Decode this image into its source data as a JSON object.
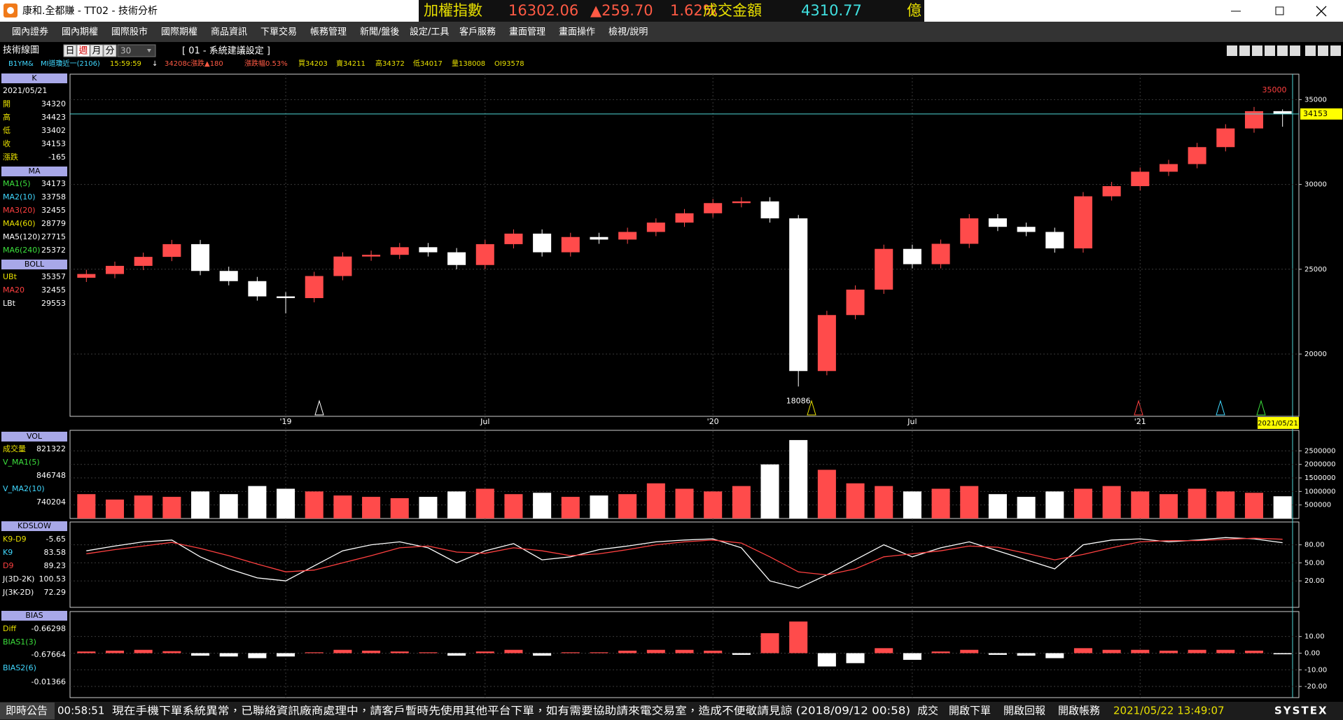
{
  "window": {
    "title": "康和.全都賺 - TT02 - 技術分析"
  },
  "ticker": {
    "name": "加權指數",
    "price": "16302.06",
    "change": "▲259.70",
    "pct": "1.62%",
    "turnover_label": "成交金額",
    "turnover": "4310.77",
    "unit": "億"
  },
  "menu": [
    "國內證券",
    "國內期權",
    "國際股市",
    "國際期權",
    "商品資訊",
    "下單交易",
    "帳務管理",
    "新聞/盤後",
    "設定/工具",
    "客戶服務",
    "畫面管理",
    "畫面操作",
    "檢視/說明"
  ],
  "toolbar": {
    "label": "技術線圖",
    "periods": [
      "日",
      "週",
      "月",
      "分"
    ],
    "count": "30",
    "setting": "[ 01 - 系統建議設定 ]"
  },
  "quote_line": [
    "B1YM&",
    "MI道瓊近一(2106)",
    "15:59:59",
    "↓",
    "34208c",
    "漲跌▲180",
    "漲跌幅0.53%",
    "買34203",
    "賣34211",
    "高34372",
    "低34017",
    "量138008",
    "OI93578"
  ],
  "chart_data": [
    {
      "type": "candlestick",
      "title": "K",
      "date": "2021/05/21",
      "categories": [
        null,
        null,
        null,
        null,
        null,
        null,
        null,
        "'19",
        null,
        null,
        null,
        null,
        null,
        null,
        "Jul",
        null,
        null,
        null,
        null,
        null,
        null,
        null,
        "'20",
        null,
        null,
        null,
        null,
        null,
        null,
        "Jul",
        null,
        null,
        null,
        null,
        null,
        null,
        null,
        "'21",
        null,
        null,
        null,
        null,
        null
      ],
      "open": [
        24500,
        24720,
        25200,
        25730,
        26480,
        24900,
        24300,
        23400,
        23300,
        24600,
        25750,
        25850,
        26300,
        26000,
        25250,
        26480,
        27100,
        26000,
        26900,
        26750,
        27200,
        27750,
        28300,
        28900,
        29000,
        28000,
        19000,
        22300,
        23800,
        26200,
        25300,
        26500,
        28000,
        27500,
        27200,
        26230,
        29300,
        29900,
        30750,
        31200,
        32200,
        33300,
        34320
      ],
      "high": [
        24970,
        25450,
        25980,
        26730,
        26730,
        25150,
        24550,
        23650,
        24850,
        26000,
        26100,
        26550,
        26550,
        26250,
        26730,
        27350,
        27350,
        27150,
        27150,
        27450,
        28000,
        28550,
        29150,
        29250,
        29250,
        28200,
        22550,
        24050,
        26450,
        26450,
        26750,
        28250,
        28250,
        27750,
        27450,
        29550,
        30150,
        31000,
        31450,
        32450,
        33550,
        34568,
        34423
      ],
      "low": [
        24250,
        24470,
        24950,
        25480,
        24650,
        24050,
        23150,
        22400,
        23050,
        24350,
        25500,
        25600,
        25750,
        25000,
        25000,
        26230,
        25750,
        25750,
        26500,
        26500,
        26950,
        27500,
        28050,
        28650,
        27750,
        18086,
        18750,
        22050,
        23550,
        25050,
        25050,
        26250,
        27250,
        26950,
        25980,
        25980,
        29050,
        29650,
        30500,
        30950,
        31950,
        33050,
        33402
      ],
      "close": [
        24720,
        25200,
        25730,
        26480,
        24900,
        24300,
        23400,
        23300,
        24600,
        25750,
        25850,
        26300,
        26000,
        25250,
        26480,
        27100,
        26000,
        26900,
        26750,
        27200,
        27750,
        28300,
        28900,
        29000,
        28000,
        19000,
        22300,
        23800,
        26200,
        25300,
        26500,
        28000,
        27500,
        27200,
        26230,
        29300,
        29900,
        30750,
        31200,
        32200,
        33300,
        34318,
        34153
      ],
      "field_labels": [
        "開",
        "高",
        "低",
        "收"
      ],
      "change_label": "漲跌",
      "change": -165,
      "up_color": "#ff4b4b",
      "down_color": "#ffffff",
      "price_line_color": "#4fd6d6",
      "ylim": [
        16330,
        36500
      ],
      "yticks": [
        20000,
        25000,
        30000,
        35000
      ],
      "grid": true,
      "annotations": [
        "35000"
      ],
      "ma_title": "MA",
      "ma": [
        {
          "name": "MA1(5)",
          "value": 34173,
          "color": "#3ce03c"
        },
        {
          "name": "MA2(10)",
          "value": 33758,
          "color": "#40d8ff"
        },
        {
          "name": "MA3(20)",
          "value": 32455,
          "color": "#ff4040"
        },
        {
          "name": "MA4(60)",
          "value": 28779,
          "color": "#e8e000"
        },
        {
          "name": "MA5(120)",
          "value": 27715,
          "color": "#ffffff"
        },
        {
          "name": "MA6(240)",
          "value": 25372,
          "color": "#3ce03c"
        }
      ],
      "boll_title": "BOLL",
      "boll": [
        {
          "name": "UBt",
          "value": 35357,
          "color": "#e8e000"
        },
        {
          "name": "MA20",
          "value": 32455,
          "color": "#ff4040"
        },
        {
          "name": "LBt",
          "value": 29553,
          "color": "#ffffff"
        }
      ]
    },
    {
      "type": "bar",
      "title": "VOL",
      "color_by_price": true,
      "series": [
        {
          "name": "成交量",
          "color": "#e8e000",
          "values": [
            900000,
            700000,
            850000,
            800000,
            1000000,
            900000,
            1200000,
            1100000,
            1000000,
            850000,
            800000,
            750000,
            800000,
            1000000,
            1100000,
            900000,
            950000,
            800000,
            850000,
            900000,
            1300000,
            1100000,
            1000000,
            1200000,
            2000000,
            2900000,
            1800000,
            1300000,
            1200000,
            1000000,
            1100000,
            1200000,
            900000,
            800000,
            1000000,
            1100000,
            1200000,
            1000000,
            900000,
            1100000,
            1000000,
            950000,
            821322
          ]
        }
      ],
      "indicators": [
        {
          "name": "V_MA1(5)",
          "value": 846748,
          "color": "#3ce03c"
        },
        {
          "name": "V_MA2(10)",
          "value": 740204,
          "color": "#40d8ff"
        }
      ],
      "ylim": [
        0,
        3260000
      ],
      "yticks": [
        500000,
        1000000,
        1500000,
        2000000,
        2500000
      ]
    },
    {
      "type": "line",
      "title": "KDSLOW",
      "series": [
        {
          "name": "K9",
          "color": "#ffffff",
          "values": [
            70,
            78,
            85,
            88,
            60,
            40,
            25,
            20,
            45,
            70,
            80,
            85,
            75,
            50,
            70,
            82,
            55,
            60,
            72,
            78,
            85,
            88,
            90,
            75,
            20,
            8,
            30,
            55,
            80,
            60,
            75,
            85,
            70,
            55,
            40,
            80,
            88,
            90,
            85,
            88,
            92,
            90,
            83.58
          ]
        },
        {
          "name": "D9",
          "color": "#ff4040",
          "values": [
            65,
            72,
            78,
            84,
            74,
            62,
            48,
            35,
            38,
            50,
            62,
            75,
            78,
            68,
            66,
            75,
            70,
            62,
            65,
            72,
            80,
            85,
            88,
            83,
            60,
            35,
            30,
            40,
            60,
            65,
            70,
            78,
            76,
            66,
            55,
            64,
            75,
            85,
            87,
            87,
            89,
            91,
            89.23
          ]
        }
      ],
      "indicators": [
        {
          "name": "K9-D9",
          "value": -5.65,
          "color": "#e8e000"
        },
        {
          "name": "J(3D-2K)",
          "value": 100.53,
          "color": "#ffffff"
        },
        {
          "name": "J(3K-2D)",
          "value": 72.29,
          "color": "#ffffff"
        }
      ],
      "ylim": [
        -24,
        118
      ],
      "yticks": [
        {
          "value": 80,
          "label": "80.00"
        },
        {
          "value": 50,
          "label": "50.00"
        },
        {
          "value": 20,
          "label": "20.00"
        }
      ]
    },
    {
      "type": "bar",
      "title": "BIAS",
      "up_color": "#ff4b4b",
      "down_color": "#ffffff",
      "series": [
        {
          "name": "BIAS1(3)",
          "color": "#3ce03c",
          "values": [
            1,
            1.5,
            2,
            1.2,
            -1.5,
            -2,
            -3,
            -2,
            0.5,
            2,
            1.5,
            1,
            0.5,
            -1.5,
            1,
            2,
            -1.5,
            0.5,
            0.5,
            1.5,
            2,
            2,
            1.5,
            -1,
            12,
            19,
            -8,
            -6,
            3,
            -4,
            1,
            2,
            -1,
            -1.5,
            -3,
            3,
            2,
            2,
            1.5,
            2,
            2,
            1.5,
            -0.67664
          ]
        }
      ],
      "indicators": [
        {
          "name": "Diff",
          "value": -0.66298,
          "color": "#e8e000"
        },
        {
          "name": "BIAS2(6)",
          "value": -0.01366,
          "color": "#40d8ff"
        }
      ],
      "ylim": [
        -26.7,
        25
      ],
      "yticks": [
        {
          "value": 10,
          "label": "10.00"
        },
        {
          "value": 0,
          "label": "0.00"
        },
        {
          "value": -10,
          "label": "-10.00"
        },
        {
          "value": -20,
          "label": "-20.00"
        }
      ]
    }
  ],
  "status_bar": {
    "label": "即時公告",
    "time": "00:58:51",
    "message": "現在手機下單系統異常，已聯絡資訊廠商處理中，請客戶暫時先使用其他平台下單，如有需要協助請來電交易室，造成不便敬請見諒 (2018/09/12 00:58)",
    "trade": "成交",
    "buttons": [
      "開啟下單",
      "開啟回報",
      "開啟帳務"
    ],
    "datetime": "2021/05/22 13:49:07",
    "brand": "SYSTEX"
  }
}
